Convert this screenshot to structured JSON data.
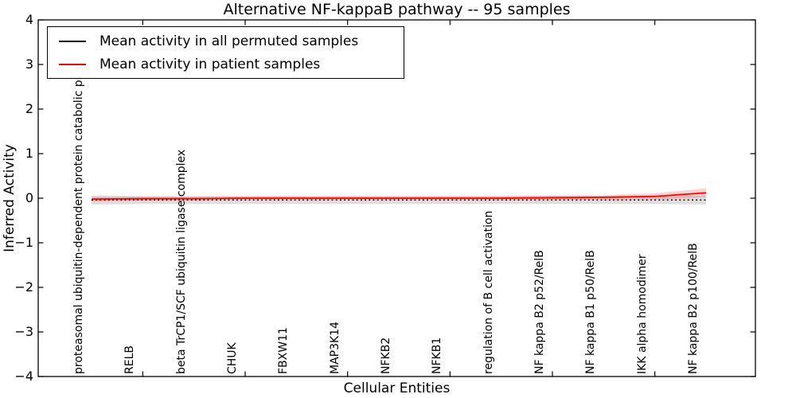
{
  "figure": {
    "title": "Alternative NF-kappaB pathway -- 95 samples",
    "xlabel": "Cellular Entities",
    "ylabel": "Inferred Activity"
  },
  "legend": {
    "items": [
      {
        "label": "Mean activity in all permuted samples",
        "color": "#000000"
      },
      {
        "label": "Mean activity in patient samples",
        "color": "#ff0000"
      }
    ]
  },
  "chart_data": {
    "type": "line",
    "title": "Alternative NF-kappaB pathway -- 95 samples",
    "xlabel": "Cellular Entities",
    "ylabel": "Inferred Activity",
    "ylim": [
      -4,
      4
    ],
    "yticks": [
      -4,
      -3,
      -2,
      -1,
      0,
      1,
      2,
      3,
      4
    ],
    "xtick_indices": [
      1,
      3,
      5,
      7,
      9,
      11
    ],
    "grid": false,
    "legend_position": "upper left",
    "categories": [
      "proteasomal ubiquitin-dependent protein catabolic process",
      "RELB",
      "beta TrCP1/SCF ubiquitin ligase complex",
      "CHUK",
      "FBXW11",
      "MAP3K14",
      "NFKB2",
      "NFKB1",
      "regulation of B cell activation",
      "NF kappa B2 p52/RelB",
      "NF kappa B1 p50/RelB",
      "IKK alpha homodimer",
      "NF kappa B2 p100/RelB"
    ],
    "series": [
      {
        "name": "Mean activity in all permuted samples",
        "color": "#000000",
        "style": "dotted",
        "values": [
          -0.04,
          -0.04,
          -0.04,
          -0.04,
          -0.04,
          -0.04,
          -0.04,
          -0.04,
          -0.04,
          -0.04,
          -0.04,
          -0.04,
          -0.04
        ],
        "band_halfwidth": [
          0.1,
          0.09,
          0.09,
          0.09,
          0.09,
          0.09,
          0.09,
          0.09,
          0.09,
          0.09,
          0.09,
          0.09,
          0.1
        ],
        "band_color": "rgba(0,0,0,0.13)"
      },
      {
        "name": "Mean activity in patient samples",
        "color": "#ff0000",
        "style": "solid",
        "values": [
          -0.02,
          -0.01,
          -0.01,
          0.0,
          0.0,
          0.0,
          0.0,
          0.0,
          0.0,
          0.01,
          0.02,
          0.04,
          0.12
        ],
        "band_halfwidth": [
          0.05,
          0.04,
          0.04,
          0.04,
          0.04,
          0.04,
          0.04,
          0.04,
          0.04,
          0.05,
          0.05,
          0.07,
          0.1
        ],
        "band_color": "rgba(255,0,0,0.18)"
      }
    ]
  }
}
